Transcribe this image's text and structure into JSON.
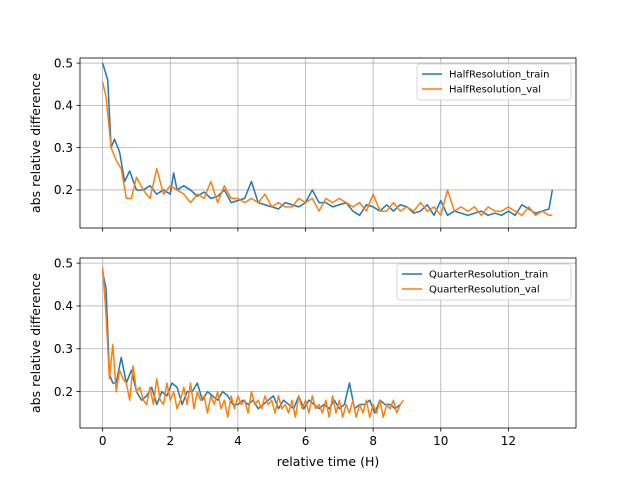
{
  "chart_data": [
    {
      "type": "line",
      "ylabel": "abs relative difference",
      "xlabel": "",
      "xlim": [
        -0.67,
        14.0
      ],
      "ylim": [
        0.11,
        0.512
      ],
      "xticks": [
        0,
        2,
        4,
        6,
        8,
        10,
        12
      ],
      "show_xtick_labels": false,
      "yticks": [
        0.2,
        0.3,
        0.4,
        0.5
      ],
      "ytick_labels": [
        "0.2",
        "0.3",
        "0.4",
        "0.5"
      ],
      "grid": true,
      "legend": "top-right",
      "series": [
        {
          "name": "HalfResolution_train",
          "color": "#1f77b4",
          "x": [
            0,
            0.15,
            0.25,
            0.35,
            0.5,
            0.65,
            0.8,
            1.0,
            1.2,
            1.4,
            1.6,
            1.8,
            2.0,
            2.1,
            2.2,
            2.4,
            2.6,
            2.8,
            3.0,
            3.2,
            3.4,
            3.6,
            3.8,
            4.0,
            4.2,
            4.4,
            4.6,
            4.8,
            5.0,
            5.2,
            5.4,
            5.6,
            5.8,
            6.0,
            6.2,
            6.4,
            6.6,
            6.8,
            7.0,
            7.2,
            7.4,
            7.6,
            7.8,
            8.0,
            8.2,
            8.4,
            8.6,
            8.8,
            9.0,
            9.2,
            9.4,
            9.6,
            9.8,
            10.0,
            10.2,
            10.4,
            10.6,
            10.8,
            11.0,
            11.2,
            11.4,
            11.6,
            11.8,
            12.0,
            12.2,
            12.4,
            12.6,
            12.8,
            13.0,
            13.2,
            13.3
          ],
          "values": [
            0.5,
            0.46,
            0.3,
            0.32,
            0.29,
            0.22,
            0.245,
            0.2,
            0.2,
            0.21,
            0.19,
            0.2,
            0.19,
            0.24,
            0.2,
            0.21,
            0.2,
            0.185,
            0.195,
            0.18,
            0.185,
            0.2,
            0.17,
            0.175,
            0.18,
            0.22,
            0.17,
            0.165,
            0.16,
            0.155,
            0.17,
            0.165,
            0.16,
            0.17,
            0.2,
            0.17,
            0.17,
            0.16,
            0.165,
            0.17,
            0.15,
            0.14,
            0.165,
            0.16,
            0.15,
            0.165,
            0.15,
            0.165,
            0.16,
            0.145,
            0.15,
            0.165,
            0.14,
            0.175,
            0.14,
            0.15,
            0.145,
            0.14,
            0.145,
            0.15,
            0.14,
            0.145,
            0.14,
            0.15,
            0.14,
            0.165,
            0.155,
            0.145,
            0.15,
            0.155,
            0.2
          ]
        },
        {
          "name": "HalfResolution_val",
          "color": "#ff7f0e",
          "x": [
            0,
            0.1,
            0.25,
            0.4,
            0.55,
            0.7,
            0.85,
            1.0,
            1.2,
            1.4,
            1.6,
            1.8,
            2.0,
            2.2,
            2.4,
            2.6,
            2.8,
            3.0,
            3.2,
            3.4,
            3.6,
            3.8,
            4.0,
            4.2,
            4.4,
            4.6,
            4.8,
            5.0,
            5.2,
            5.4,
            5.6,
            5.8,
            6.0,
            6.2,
            6.4,
            6.6,
            6.8,
            7.0,
            7.2,
            7.4,
            7.6,
            7.8,
            8.0,
            8.2,
            8.4,
            8.6,
            8.8,
            9.0,
            9.2,
            9.4,
            9.6,
            9.8,
            10.0,
            10.2,
            10.4,
            10.6,
            10.8,
            11.0,
            11.2,
            11.4,
            11.6,
            11.8,
            12.0,
            12.2,
            12.4,
            12.6,
            12.8,
            13.0,
            13.2,
            13.3
          ],
          "values": [
            0.455,
            0.42,
            0.3,
            0.27,
            0.25,
            0.18,
            0.18,
            0.23,
            0.2,
            0.18,
            0.25,
            0.19,
            0.21,
            0.2,
            0.19,
            0.17,
            0.19,
            0.18,
            0.22,
            0.17,
            0.21,
            0.18,
            0.18,
            0.17,
            0.18,
            0.17,
            0.19,
            0.16,
            0.17,
            0.16,
            0.16,
            0.18,
            0.17,
            0.18,
            0.15,
            0.18,
            0.17,
            0.18,
            0.17,
            0.16,
            0.17,
            0.15,
            0.19,
            0.15,
            0.15,
            0.17,
            0.15,
            0.16,
            0.15,
            0.17,
            0.15,
            0.16,
            0.14,
            0.2,
            0.15,
            0.16,
            0.15,
            0.16,
            0.14,
            0.16,
            0.15,
            0.15,
            0.16,
            0.15,
            0.14,
            0.16,
            0.14,
            0.15,
            0.14,
            0.14
          ]
        }
      ]
    },
    {
      "type": "line",
      "ylabel": "abs relative difference",
      "xlabel": "relative time (H)",
      "xlim": [
        -0.67,
        14.0
      ],
      "ylim": [
        0.115,
        0.512
      ],
      "xticks": [
        0,
        2,
        4,
        6,
        8,
        10,
        12
      ],
      "xtick_labels": [
        "0",
        "2",
        "4",
        "6",
        "8",
        "10",
        "12"
      ],
      "show_xtick_labels": true,
      "yticks": [
        0.2,
        0.3,
        0.4,
        0.5
      ],
      "ytick_labels": [
        "0.2",
        "0.3",
        "0.4",
        "0.5"
      ],
      "grid": true,
      "legend": "top-right",
      "series": [
        {
          "name": "QuarterResolution_train",
          "color": "#1f77b4",
          "x": [
            0,
            0.1,
            0.2,
            0.3,
            0.4,
            0.55,
            0.7,
            0.85,
            1.0,
            1.15,
            1.3,
            1.45,
            1.6,
            1.75,
            1.9,
            2.05,
            2.2,
            2.35,
            2.5,
            2.65,
            2.8,
            2.95,
            3.1,
            3.25,
            3.4,
            3.55,
            3.7,
            3.85,
            4.0,
            4.15,
            4.3,
            4.45,
            4.6,
            4.75,
            4.9,
            5.05,
            5.2,
            5.35,
            5.5,
            5.65,
            5.8,
            5.95,
            6.1,
            6.25,
            6.4,
            6.55,
            6.7,
            6.85,
            7.0,
            7.15,
            7.3,
            7.45,
            7.6,
            7.75,
            7.9,
            8.05,
            8.2,
            8.35,
            8.5,
            8.65,
            8.8
          ],
          "values": [
            0.48,
            0.44,
            0.24,
            0.22,
            0.22,
            0.28,
            0.22,
            0.25,
            0.2,
            0.18,
            0.19,
            0.21,
            0.17,
            0.2,
            0.19,
            0.22,
            0.21,
            0.17,
            0.2,
            0.2,
            0.22,
            0.18,
            0.2,
            0.19,
            0.18,
            0.2,
            0.19,
            0.17,
            0.17,
            0.18,
            0.17,
            0.18,
            0.16,
            0.17,
            0.18,
            0.19,
            0.16,
            0.18,
            0.17,
            0.16,
            0.19,
            0.16,
            0.18,
            0.17,
            0.16,
            0.17,
            0.16,
            0.18,
            0.16,
            0.17,
            0.22,
            0.16,
            0.17,
            0.17,
            0.18,
            0.15,
            0.18,
            0.17,
            0.17,
            0.16,
            0.17
          ]
        },
        {
          "name": "QuarterResolution_val",
          "color": "#ff7f0e",
          "x": [
            0,
            0.1,
            0.2,
            0.3,
            0.4,
            0.5,
            0.6,
            0.7,
            0.8,
            0.9,
            1.0,
            1.1,
            1.2,
            1.3,
            1.4,
            1.5,
            1.6,
            1.7,
            1.8,
            1.9,
            2.0,
            2.1,
            2.2,
            2.3,
            2.4,
            2.5,
            2.6,
            2.7,
            2.8,
            2.9,
            3.0,
            3.1,
            3.2,
            3.3,
            3.4,
            3.5,
            3.6,
            3.7,
            3.8,
            3.9,
            4.0,
            4.1,
            4.2,
            4.3,
            4.4,
            4.5,
            4.6,
            4.7,
            4.8,
            4.9,
            5.0,
            5.1,
            5.2,
            5.3,
            5.4,
            5.5,
            5.6,
            5.7,
            5.8,
            5.9,
            6.0,
            6.1,
            6.2,
            6.3,
            6.4,
            6.5,
            6.6,
            6.7,
            6.8,
            6.9,
            7.0,
            7.1,
            7.2,
            7.3,
            7.4,
            7.5,
            7.6,
            7.7,
            7.8,
            7.9,
            8.0,
            8.1,
            8.2,
            8.3,
            8.4,
            8.5,
            8.6,
            8.7,
            8.8,
            8.9
          ],
          "values": [
            0.49,
            0.38,
            0.23,
            0.31,
            0.2,
            0.25,
            0.23,
            0.22,
            0.18,
            0.26,
            0.2,
            0.21,
            0.18,
            0.17,
            0.21,
            0.17,
            0.23,
            0.18,
            0.17,
            0.22,
            0.18,
            0.2,
            0.16,
            0.18,
            0.21,
            0.17,
            0.22,
            0.16,
            0.2,
            0.18,
            0.19,
            0.15,
            0.19,
            0.17,
            0.2,
            0.16,
            0.18,
            0.14,
            0.19,
            0.16,
            0.19,
            0.17,
            0.18,
            0.15,
            0.2,
            0.17,
            0.18,
            0.16,
            0.19,
            0.17,
            0.18,
            0.15,
            0.19,
            0.16,
            0.17,
            0.15,
            0.18,
            0.14,
            0.19,
            0.16,
            0.18,
            0.15,
            0.19,
            0.16,
            0.17,
            0.15,
            0.18,
            0.14,
            0.19,
            0.15,
            0.18,
            0.14,
            0.17,
            0.15,
            0.18,
            0.14,
            0.17,
            0.15,
            0.18,
            0.14,
            0.17,
            0.15,
            0.18,
            0.14,
            0.17,
            0.16,
            0.18,
            0.15,
            0.17,
            0.18
          ]
        }
      ]
    }
  ]
}
